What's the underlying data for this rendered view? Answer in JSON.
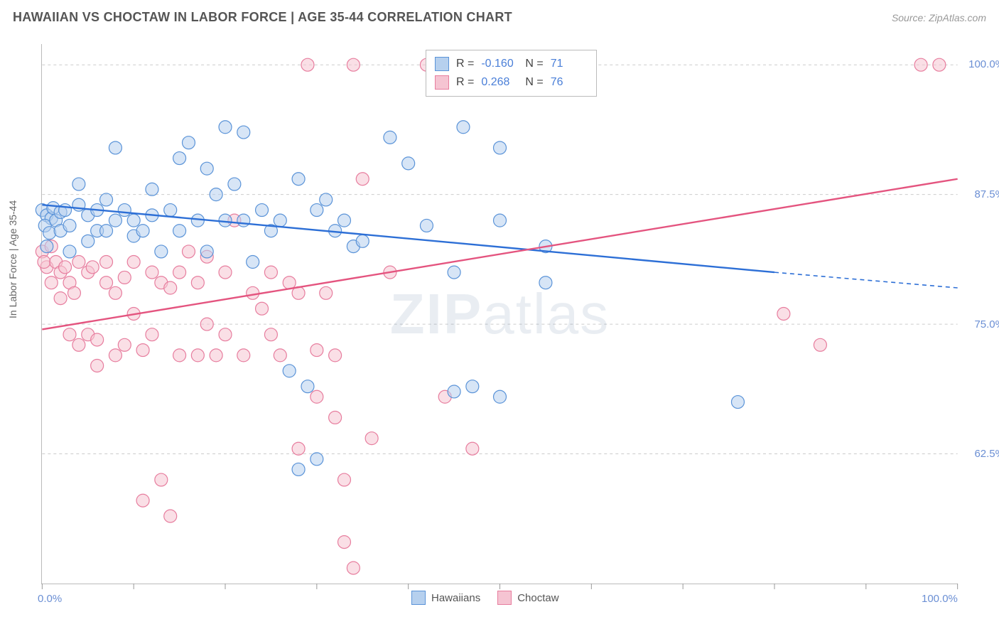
{
  "title": "HAWAIIAN VS CHOCTAW IN LABOR FORCE | AGE 35-44 CORRELATION CHART",
  "source": "Source: ZipAtlas.com",
  "yaxis_label": "In Labor Force | Age 35-44",
  "watermark_a": "ZIP",
  "watermark_b": "atlas",
  "xlim": [
    0,
    100
  ],
  "ylim": [
    50,
    102
  ],
  "y_ticks": [
    62.5,
    75.0,
    87.5,
    100.0
  ],
  "y_tick_labels": [
    "62.5%",
    "75.0%",
    "87.5%",
    "100.0%"
  ],
  "x_ticks": [
    0,
    10,
    20,
    30,
    40,
    50,
    60,
    70,
    80,
    90,
    100
  ],
  "x_tick_labels_shown": {
    "0": "0.0%",
    "100": "100.0%"
  },
  "grid_color": "#cccccc",
  "background_color": "#ffffff",
  "plot_border_color": "#bbbbbb",
  "marker_radius": 9,
  "marker_opacity": 0.55,
  "marker_stroke_width": 1.2,
  "line_width": 2.4,
  "series": [
    {
      "name": "Hawaiians",
      "fill": "#b6d0ee",
      "stroke": "#5a93d8",
      "line_color": "#2d6fd6",
      "R": "-0.160",
      "N": "71",
      "regression": {
        "x1": 0,
        "y1": 86.5,
        "x2": 80,
        "y2": 80.0,
        "dash_x2": 100,
        "dash_y2": 78.5
      },
      "points": [
        [
          0,
          86
        ],
        [
          0.5,
          85.5
        ],
        [
          1,
          85.2
        ],
        [
          0.3,
          84.5
        ],
        [
          1.2,
          86.2
        ],
        [
          0.8,
          83.8
        ],
        [
          1.5,
          85
        ],
        [
          2,
          85.8
        ],
        [
          2,
          84
        ],
        [
          0.5,
          82.5
        ],
        [
          2.5,
          86
        ],
        [
          3,
          84.5
        ],
        [
          3,
          82
        ],
        [
          4,
          86.5
        ],
        [
          4,
          88.5
        ],
        [
          5,
          85.5
        ],
        [
          5,
          83
        ],
        [
          6,
          86
        ],
        [
          6,
          84
        ],
        [
          7,
          87
        ],
        [
          7,
          84
        ],
        [
          8,
          92
        ],
        [
          8,
          85
        ],
        [
          9,
          86
        ],
        [
          10,
          83.5
        ],
        [
          10,
          85
        ],
        [
          11,
          84
        ],
        [
          12,
          88
        ],
        [
          12,
          85.5
        ],
        [
          13,
          82
        ],
        [
          14,
          86
        ],
        [
          15,
          91
        ],
        [
          15,
          84
        ],
        [
          16,
          92.5
        ],
        [
          17,
          85
        ],
        [
          18,
          90
        ],
        [
          18,
          82
        ],
        [
          19,
          87.5
        ],
        [
          20,
          94
        ],
        [
          20,
          85
        ],
        [
          21,
          88.5
        ],
        [
          22,
          85
        ],
        [
          22,
          93.5
        ],
        [
          23,
          81
        ],
        [
          24,
          86
        ],
        [
          25,
          84
        ],
        [
          26,
          85
        ],
        [
          27,
          70.5
        ],
        [
          28,
          89
        ],
        [
          28,
          61
        ],
        [
          29,
          69
        ],
        [
          30,
          86
        ],
        [
          30,
          62
        ],
        [
          31,
          87
        ],
        [
          32,
          84
        ],
        [
          33,
          85
        ],
        [
          34,
          82.5
        ],
        [
          35,
          83
        ],
        [
          38,
          93
        ],
        [
          40,
          90.5
        ],
        [
          42,
          84.5
        ],
        [
          45,
          80
        ],
        [
          45,
          68.5
        ],
        [
          46,
          94
        ],
        [
          47,
          69
        ],
        [
          50,
          92
        ],
        [
          50,
          68
        ],
        [
          55,
          82.5
        ],
        [
          55,
          79
        ],
        [
          76,
          67.5
        ],
        [
          50,
          85
        ]
      ]
    },
    {
      "name": "Choctaw",
      "fill": "#f5c4d2",
      "stroke": "#e77d9e",
      "line_color": "#e4547f",
      "R": "0.268",
      "N": "76",
      "regression": {
        "x1": 0,
        "y1": 74.5,
        "x2": 100,
        "y2": 89.0
      },
      "points": [
        [
          0,
          82
        ],
        [
          0.5,
          80.5
        ],
        [
          1,
          82.5
        ],
        [
          0.2,
          81
        ],
        [
          1,
          79
        ],
        [
          1.5,
          81
        ],
        [
          2,
          80
        ],
        [
          2,
          77.5
        ],
        [
          2.5,
          80.5
        ],
        [
          3,
          79
        ],
        [
          3,
          74
        ],
        [
          3.5,
          78
        ],
        [
          4,
          81
        ],
        [
          4,
          73
        ],
        [
          5,
          80
        ],
        [
          5,
          74
        ],
        [
          5.5,
          80.5
        ],
        [
          6,
          73.5
        ],
        [
          6,
          71
        ],
        [
          7,
          79
        ],
        [
          7,
          81
        ],
        [
          8,
          72
        ],
        [
          8,
          78
        ],
        [
          9,
          73
        ],
        [
          9,
          79.5
        ],
        [
          10,
          81
        ],
        [
          10,
          76
        ],
        [
          11,
          72.5
        ],
        [
          11,
          58
        ],
        [
          12,
          80
        ],
        [
          12,
          74
        ],
        [
          13,
          60
        ],
        [
          13,
          79
        ],
        [
          14,
          56.5
        ],
        [
          14,
          78.5
        ],
        [
          15,
          72
        ],
        [
          15,
          80
        ],
        [
          16,
          82
        ],
        [
          17,
          72
        ],
        [
          17,
          79
        ],
        [
          18,
          75
        ],
        [
          18,
          81.5
        ],
        [
          19,
          72
        ],
        [
          20,
          80
        ],
        [
          20,
          74
        ],
        [
          21,
          85
        ],
        [
          22,
          72
        ],
        [
          23,
          78
        ],
        [
          24,
          76.5
        ],
        [
          25,
          74
        ],
        [
          25,
          80
        ],
        [
          26,
          72
        ],
        [
          27,
          79
        ],
        [
          28,
          63
        ],
        [
          28,
          78
        ],
        [
          29,
          100
        ],
        [
          30,
          68
        ],
        [
          30,
          72.5
        ],
        [
          31,
          78
        ],
        [
          32,
          66
        ],
        [
          32,
          72
        ],
        [
          33,
          54
        ],
        [
          33,
          60
        ],
        [
          34,
          51.5
        ],
        [
          34,
          100
        ],
        [
          35,
          89
        ],
        [
          36,
          64
        ],
        [
          38,
          80
        ],
        [
          42,
          100
        ],
        [
          44,
          68
        ],
        [
          46,
          100
        ],
        [
          47,
          63
        ],
        [
          81,
          76
        ],
        [
          85,
          73
        ],
        [
          96,
          100
        ],
        [
          98,
          100
        ]
      ]
    }
  ],
  "legend_top": [
    {
      "swatch_fill": "#b6d0ee",
      "swatch_stroke": "#5a93d8",
      "R_label": "R =",
      "R": "-0.160",
      "N_label": "N =",
      "N": "71"
    },
    {
      "swatch_fill": "#f5c4d2",
      "swatch_stroke": "#e77d9e",
      "R_label": "R =",
      "R": "0.268",
      "N_label": "N =",
      "N": "76"
    }
  ],
  "legend_bottom": [
    {
      "swatch_fill": "#b6d0ee",
      "swatch_stroke": "#5a93d8",
      "label": "Hawaiians"
    },
    {
      "swatch_fill": "#f5c4d2",
      "swatch_stroke": "#e77d9e",
      "label": "Choctaw"
    }
  ]
}
